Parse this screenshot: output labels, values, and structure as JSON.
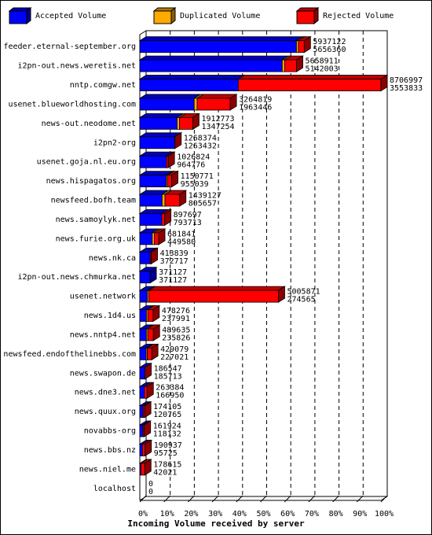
{
  "chart_data": {
    "type": "bar",
    "orientation": "horizontal",
    "stacked": true,
    "title": "Incoming Volume received by server",
    "categories": [
      "feeder.eternal-september.org",
      "i2pn-out.news.weretis.net",
      "nntp.comgw.net",
      "usenet.blueworldhosting.com",
      "news-out.neodome.net",
      "i2pn2-org",
      "usenet.goja.nl.eu.org",
      "news.hispagatos.org",
      "newsfeed.bofh.team",
      "news.samoylyk.net",
      "news.furie.org.uk",
      "news.nk.ca",
      "i2pn-out.news.chmurka.net",
      "usenet.network",
      "news.1d4.us",
      "news.nntp4.net",
      "newsfeed.endofthelinebbs.com",
      "news.swapon.de",
      "news.dne3.net",
      "news.quux.org",
      "novabbs-org",
      "news.bbs.nz",
      "news.niel.me",
      "localhost"
    ],
    "series": [
      {
        "name": "Accepted Volume",
        "color": "#0000ff",
        "values": [
          64.96,
          59.06,
          40.82,
          22.55,
          15.47,
          14.51,
          11.08,
          10.97,
          9.25,
          9.12,
          5.16,
          4.28,
          4.26,
          3.15,
          2.73,
          2.71,
          2.61,
          2.13,
          1.92,
          1.39,
          1.36,
          1.1,
          0.48,
          0
        ]
      },
      {
        "name": "Duplicated Volume",
        "color": "#ffaa00",
        "values": [
          0.8,
          1.0,
          0,
          1.2,
          1.0,
          0,
          0,
          0.5,
          1.2,
          0,
          0.9,
          0,
          0,
          0.6,
          0.6,
          0.6,
          0.5,
          0,
          0,
          0,
          0,
          0,
          0,
          0
        ]
      },
      {
        "name": "Rejected Volume",
        "color": "#ff0000",
        "values": [
          2.43,
          4.94,
          59.18,
          13.75,
          5.5,
          0.06,
          0.71,
          1.75,
          6.08,
          1.19,
          1.77,
          0.47,
          0,
          53.74,
          2.16,
          2.31,
          1.82,
          0.01,
          1.1,
          0.61,
          0.5,
          1.09,
          1.57,
          0
        ]
      }
    ],
    "offered": [
      5937122,
      5658911,
      8706997,
      3264819,
      1912773,
      1268374,
      1026824,
      1150771,
      1439127,
      897697,
      681841,
      413839,
      371127,
      5005871,
      478276,
      489635,
      429079,
      186547,
      263384,
      174105,
      161924,
      190937,
      178615,
      0
    ],
    "accepted": [
      5656360,
      5142003,
      3553833,
      1963446,
      1347254,
      1263432,
      964776,
      955039,
      805657,
      793713,
      449580,
      372717,
      371127,
      274565,
      237991,
      235826,
      227021,
      185713,
      166950,
      120765,
      118132,
      95725,
      42021,
      0
    ],
    "xlim": [
      0,
      100
    ],
    "xticks": [
      {
        "value": 0,
        "label": "0%"
      },
      {
        "value": 10,
        "label": "10%"
      },
      {
        "value": 20,
        "label": "20%"
      },
      {
        "value": 30,
        "label": "30%"
      },
      {
        "value": 40,
        "label": "40%"
      },
      {
        "value": 50,
        "label": "50%"
      },
      {
        "value": 60,
        "label": "60%"
      },
      {
        "value": 70,
        "label": "70%"
      },
      {
        "value": 80,
        "label": "80%"
      },
      {
        "value": 90,
        "label": "90%"
      },
      {
        "value": 100,
        "label": "100%"
      }
    ],
    "grid": true
  }
}
